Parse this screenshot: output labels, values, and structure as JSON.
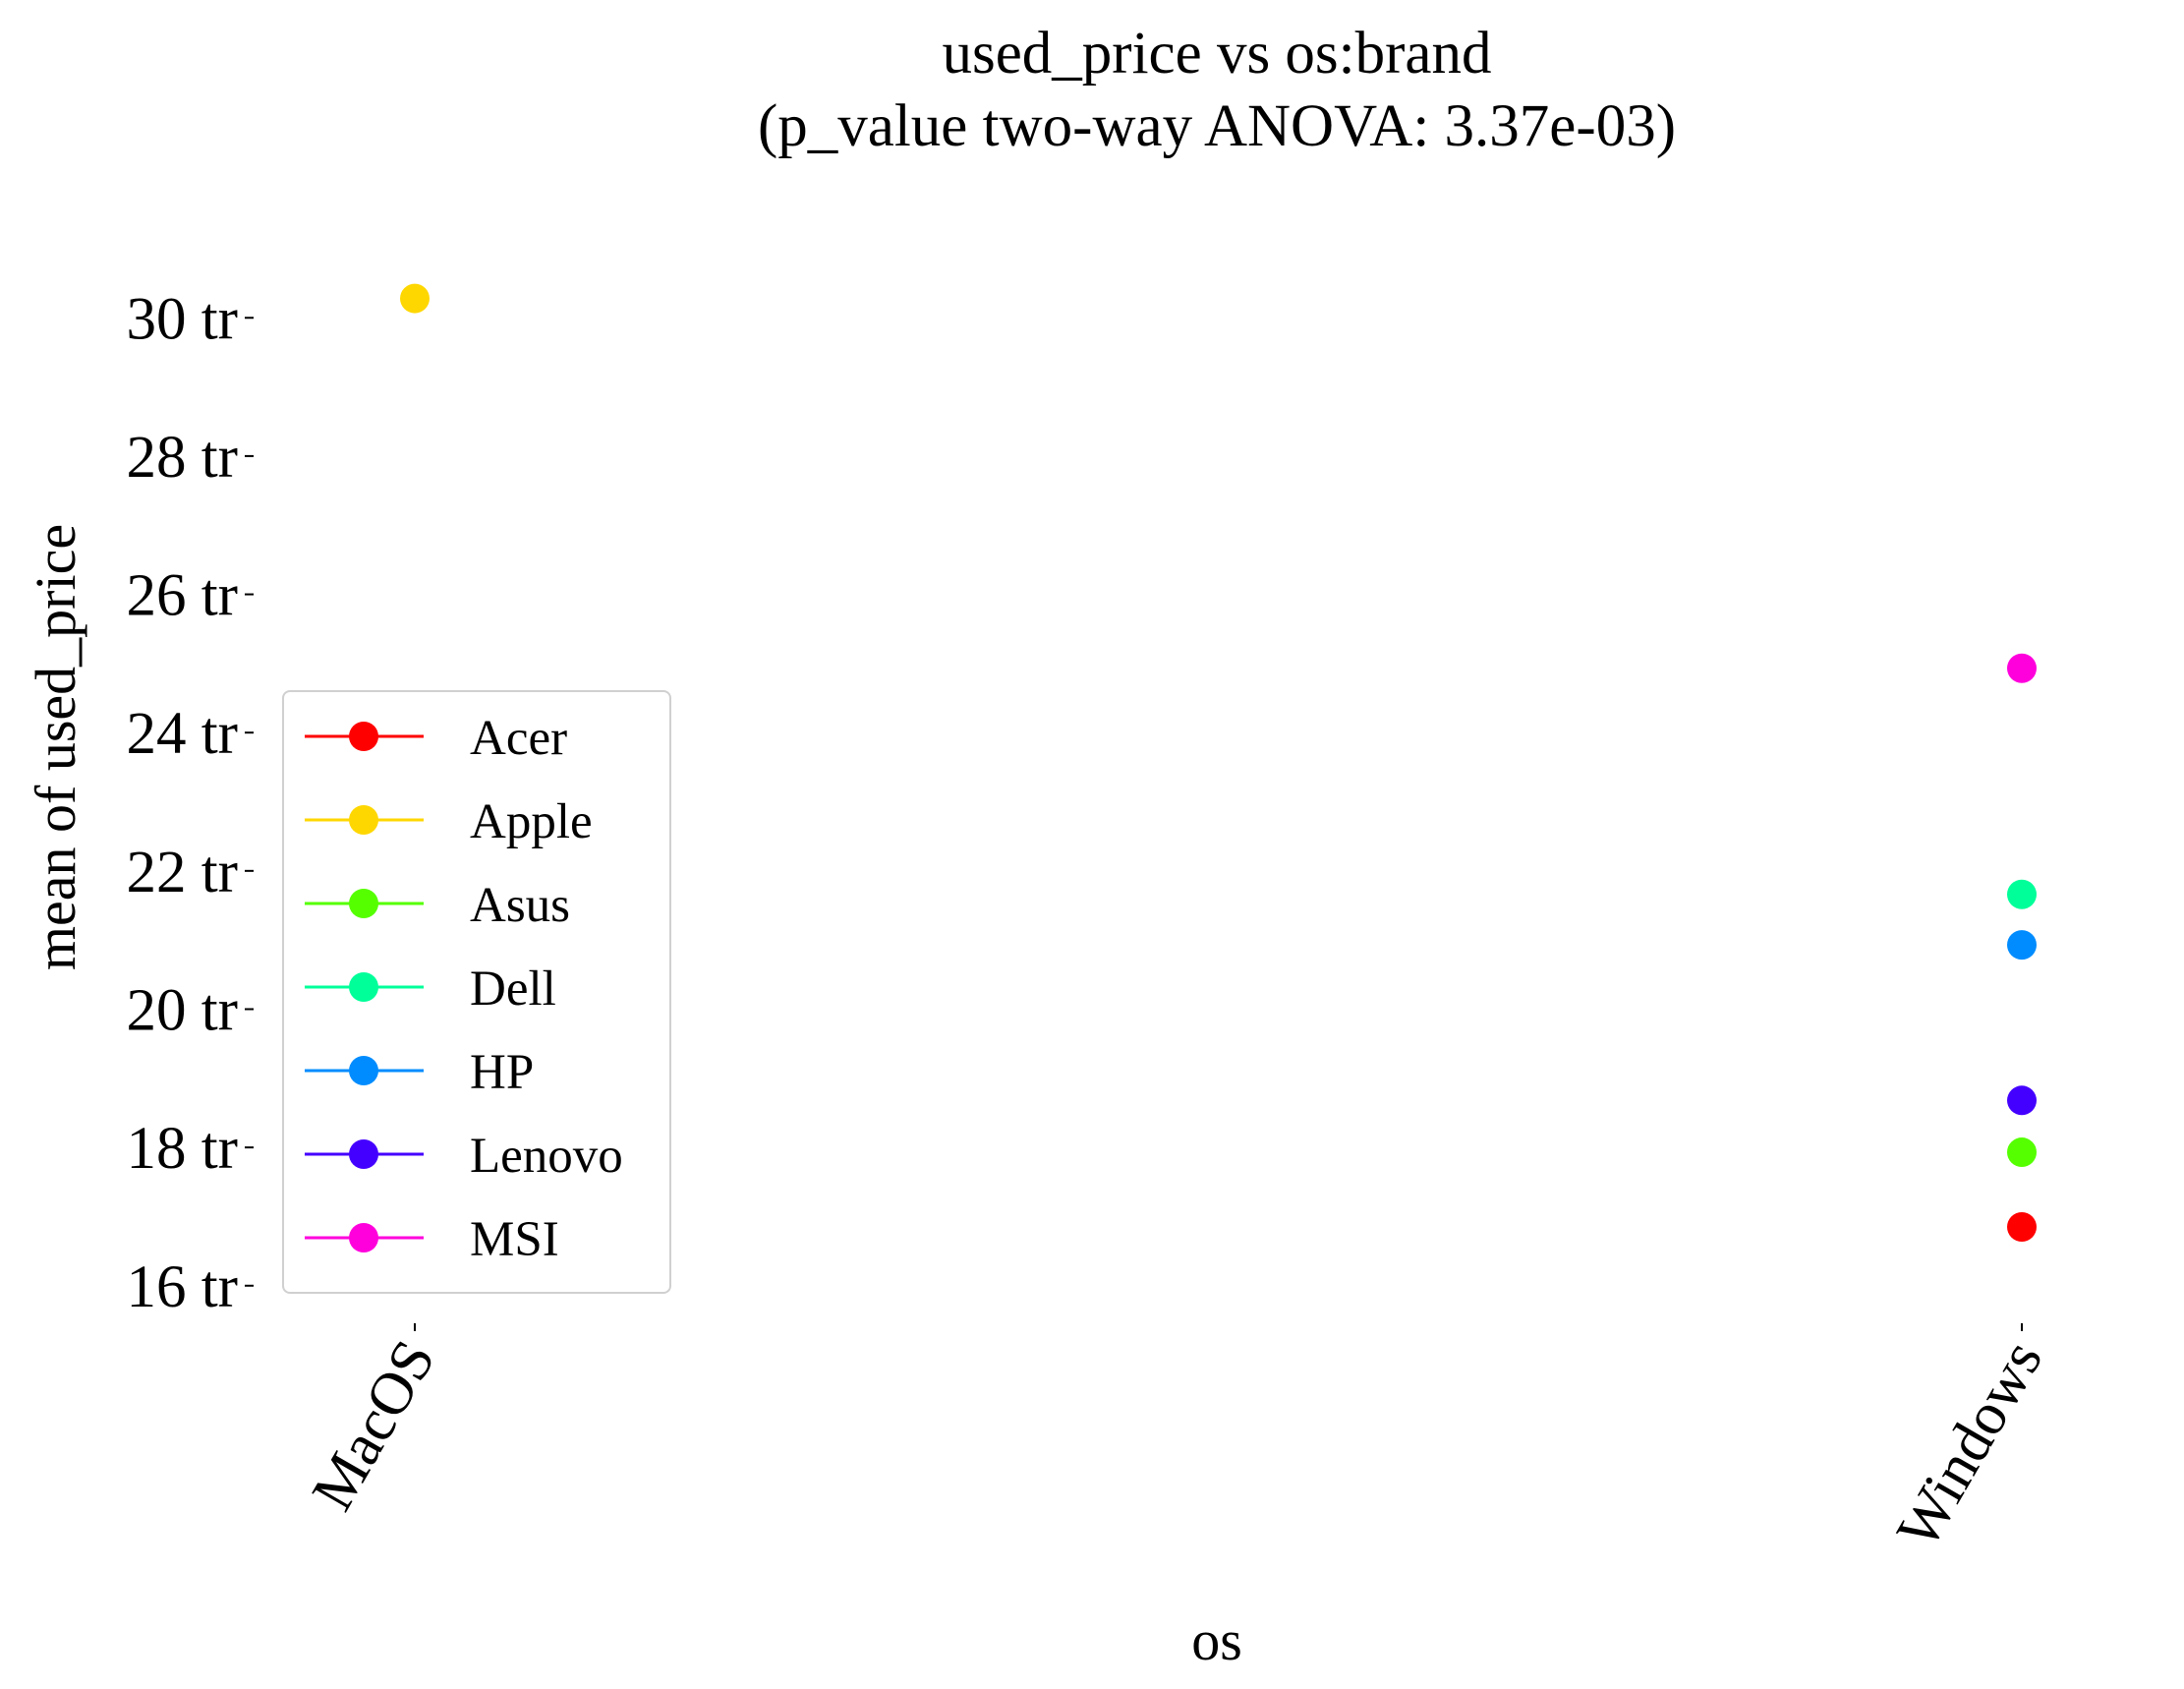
{
  "chart_data": {
    "type": "scatter",
    "title": "used_price vs os:brand",
    "subtitle": "(p_value two-way ANOVA: 3.37e-03)",
    "xlabel": "os",
    "ylabel": "mean of used_price",
    "categories": [
      "MacOS",
      "Windows"
    ],
    "ylim": [
      15.3,
      30.8
    ],
    "yticks": [
      {
        "value": 16,
        "label": "16 tr"
      },
      {
        "value": 18,
        "label": "18 tr"
      },
      {
        "value": 20,
        "label": "20 tr"
      },
      {
        "value": 22,
        "label": "22 tr"
      },
      {
        "value": 24,
        "label": "24 tr"
      },
      {
        "value": 26,
        "label": "26 tr"
      },
      {
        "value": 28,
        "label": "28 tr"
      },
      {
        "value": 30,
        "label": "30 tr"
      }
    ],
    "grid": false,
    "legend_position": "center-left",
    "series": [
      {
        "name": "Acer",
        "color": "#ff0000",
        "points": [
          {
            "x": "Windows",
            "y": 16.85
          }
        ]
      },
      {
        "name": "Apple",
        "color": "#ffd700",
        "points": [
          {
            "x": "MacOS",
            "y": 30.28
          }
        ]
      },
      {
        "name": "Asus",
        "color": "#55ff00",
        "points": [
          {
            "x": "Windows",
            "y": 17.93
          }
        ]
      },
      {
        "name": "Dell",
        "color": "#00ff99",
        "points": [
          {
            "x": "Windows",
            "y": 21.66
          }
        ]
      },
      {
        "name": "HP",
        "color": "#008cff",
        "points": [
          {
            "x": "Windows",
            "y": 20.93
          }
        ]
      },
      {
        "name": "Lenovo",
        "color": "#4400ff",
        "points": [
          {
            "x": "Windows",
            "y": 18.68
          }
        ]
      },
      {
        "name": "MSI",
        "color": "#ff00dd",
        "points": [
          {
            "x": "Windows",
            "y": 24.93
          }
        ]
      }
    ]
  }
}
